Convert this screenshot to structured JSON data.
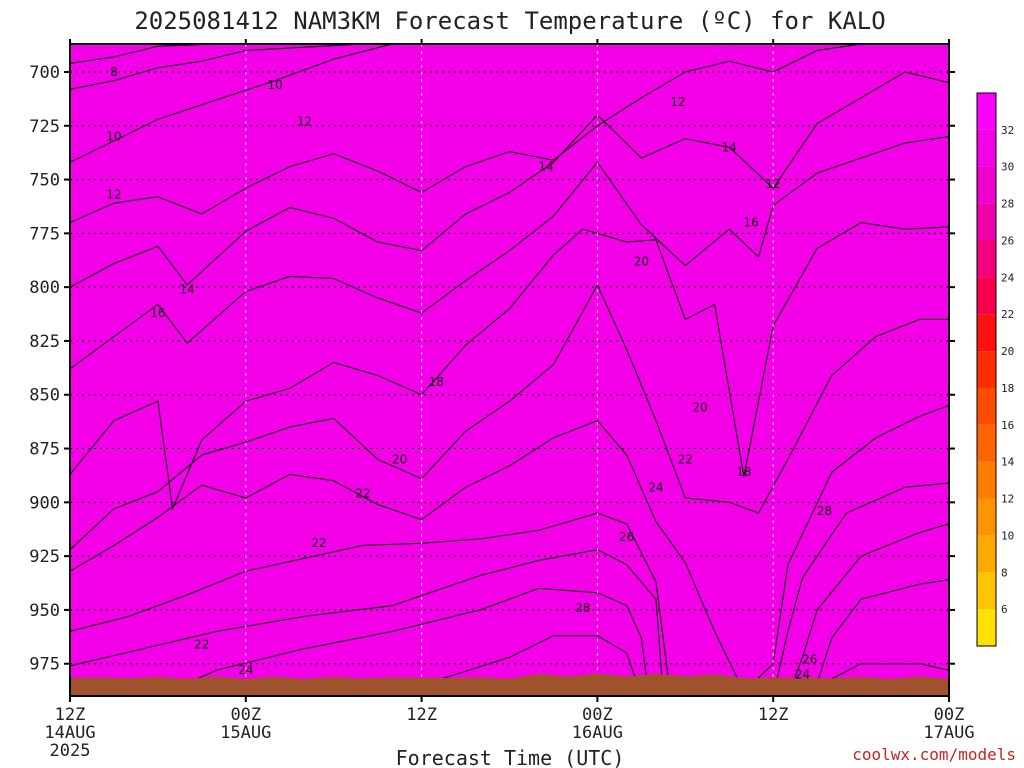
{
  "chart_data": {
    "type": "heatmap",
    "title": "2025081412 NAM3KM Forecast Temperature (ºC) for KALO",
    "xlabel": "Forecast Time (UTC)",
    "ylabel": "",
    "x_ticks": [
      {
        "hours": 0,
        "lines": [
          "12Z",
          "14AUG",
          "2025"
        ]
      },
      {
        "hours": 12,
        "lines": [
          "00Z",
          "15AUG"
        ]
      },
      {
        "hours": 24,
        "lines": [
          "12Z"
        ]
      },
      {
        "hours": 36,
        "lines": [
          "00Z",
          "16AUG"
        ]
      },
      {
        "hours": 48,
        "lines": [
          "12Z"
        ]
      },
      {
        "hours": 60,
        "lines": [
          "00Z",
          "17AUG"
        ]
      }
    ],
    "xlim": [
      0,
      60
    ],
    "y_ticks": [
      700,
      725,
      750,
      775,
      800,
      825,
      850,
      875,
      900,
      925,
      950,
      975
    ],
    "ylim": [
      687,
      990
    ],
    "colorbar_ticks": [
      6,
      8,
      10,
      12,
      14,
      16,
      18,
      20,
      22,
      24,
      26,
      28,
      30,
      32
    ],
    "colorbar_range": [
      4,
      34
    ],
    "colorbar_colors": [
      "#ffe000",
      "#ffc400",
      "#ffa800",
      "#ff9400",
      "#ff7c00",
      "#ff6400",
      "#ff4c00",
      "#ff2c00",
      "#ff1010",
      "#f8004c",
      "#f4007c",
      "#f000a8",
      "#f000cc",
      "#f400e8",
      "#ff00ff"
    ],
    "ground_color": "#a0522d",
    "contour_labels": [
      {
        "text": "8",
        "x": 3.0,
        "y": 700
      },
      {
        "text": "10",
        "x": 14.0,
        "y": 706
      },
      {
        "text": "10",
        "x": 3.0,
        "y": 730
      },
      {
        "text": "12",
        "x": 16.0,
        "y": 723
      },
      {
        "text": "12",
        "x": 3.0,
        "y": 757
      },
      {
        "text": "14",
        "x": 32.5,
        "y": 744
      },
      {
        "text": "12",
        "x": 41.5,
        "y": 714
      },
      {
        "text": "14",
        "x": 45.0,
        "y": 735
      },
      {
        "text": "12",
        "x": 48.0,
        "y": 752
      },
      {
        "text": "16",
        "x": 46.5,
        "y": 770
      },
      {
        "text": "20",
        "x": 39.0,
        "y": 788
      },
      {
        "text": "14",
        "x": 8.0,
        "y": 801
      },
      {
        "text": "16",
        "x": 6.0,
        "y": 812
      },
      {
        "text": "18",
        "x": 25.0,
        "y": 844
      },
      {
        "text": "20",
        "x": 43.0,
        "y": 856
      },
      {
        "text": "20",
        "x": 22.5,
        "y": 880
      },
      {
        "text": "22",
        "x": 42.0,
        "y": 880
      },
      {
        "text": "24",
        "x": 40.0,
        "y": 893
      },
      {
        "text": "18",
        "x": 46.0,
        "y": 886
      },
      {
        "text": "22",
        "x": 20.0,
        "y": 896
      },
      {
        "text": "22",
        "x": 17.0,
        "y": 919
      },
      {
        "text": "26",
        "x": 38.0,
        "y": 916
      },
      {
        "text": "28",
        "x": 51.5,
        "y": 904
      },
      {
        "text": "28",
        "x": 35.0,
        "y": 949
      },
      {
        "text": "22",
        "x": 9.0,
        "y": 966
      },
      {
        "text": "26",
        "x": 50.5,
        "y": 973
      },
      {
        "text": "24",
        "x": 12.0,
        "y": 978
      },
      {
        "text": "24",
        "x": 50.0,
        "y": 980
      }
    ]
  },
  "credit": "coolwx.com/models"
}
